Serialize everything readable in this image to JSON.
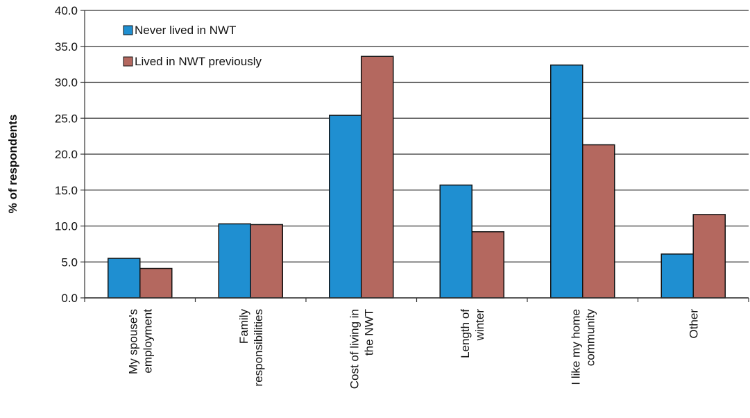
{
  "chart_data": {
    "type": "bar",
    "title": "",
    "xlabel": "",
    "ylabel": "% of respondents",
    "ylim": [
      0,
      40
    ],
    "yticks": [
      "0.0",
      "5.0",
      "10.0",
      "15.0",
      "20.0",
      "25.0",
      "30.0",
      "35.0",
      "40.0"
    ],
    "grid": true,
    "legend_position": "top-left",
    "categories": [
      [
        "My spouse's",
        "employment"
      ],
      [
        "Family",
        "responsibilities"
      ],
      [
        "Cost of living in",
        "the NWT"
      ],
      [
        "Length of",
        "winter"
      ],
      [
        "I like my home",
        "community"
      ],
      [
        "Other"
      ]
    ],
    "series": [
      {
        "name": "Never lived in NWT",
        "color": "#1f8fd1",
        "values": [
          5.5,
          10.3,
          25.4,
          15.7,
          32.4,
          6.1
        ]
      },
      {
        "name": "Lived in NWT previously",
        "color": "#b4685f",
        "values": [
          4.1,
          10.2,
          33.6,
          9.2,
          21.3,
          11.6
        ]
      }
    ]
  }
}
